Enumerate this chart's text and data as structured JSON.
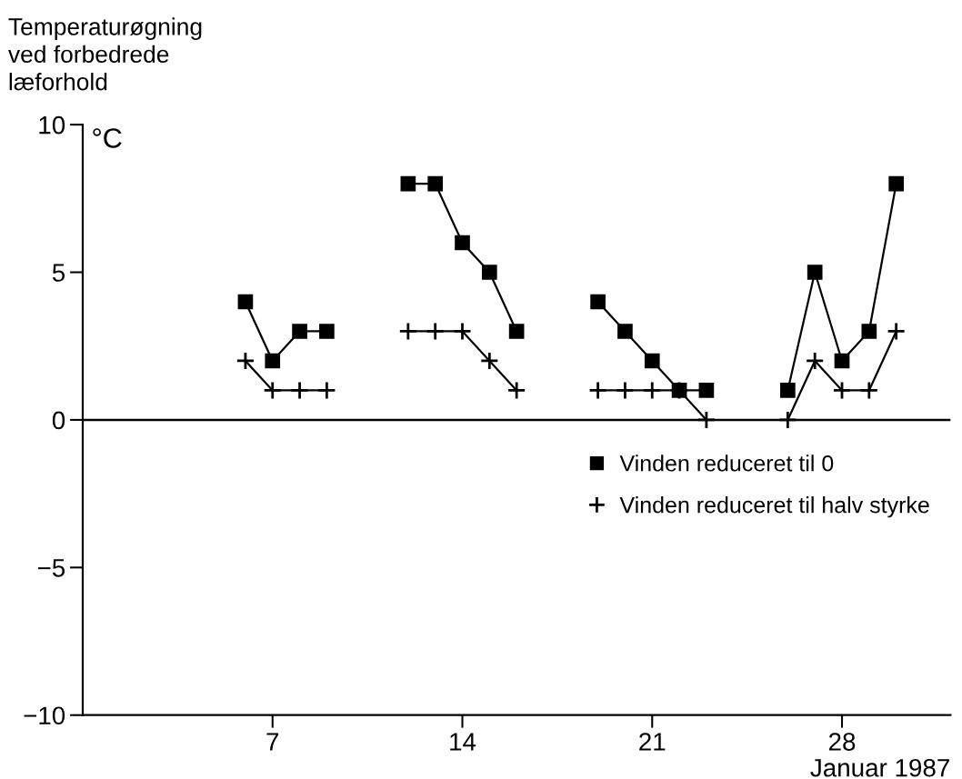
{
  "chart_data": {
    "type": "line",
    "ylabel": "Temperaturøgning\nved forbedrede\nlæforhold",
    "xlabel": "Januar 1987",
    "annotations": [
      "°C"
    ],
    "x": [
      6,
      7,
      8,
      9,
      10,
      11,
      12,
      13,
      14,
      15,
      16,
      17,
      18,
      19,
      20,
      21,
      22,
      23,
      24,
      25,
      26,
      27,
      28,
      29,
      30
    ],
    "series": [
      {
        "name": "Vinden reduceret til 0",
        "color": "#000000",
        "marker": "square",
        "values": [
          4,
          2,
          3,
          3,
          null,
          null,
          8,
          8,
          6,
          5,
          3,
          null,
          null,
          4,
          3,
          2,
          1,
          1,
          null,
          null,
          1,
          5,
          2,
          3,
          8
        ]
      },
      {
        "name": "Vinden reduceret til halv styrke",
        "color": "#000000",
        "marker": "cross",
        "values": [
          2,
          1,
          1,
          1,
          null,
          null,
          3,
          3,
          3,
          2,
          1,
          null,
          null,
          1,
          1,
          1,
          1,
          0,
          null,
          null,
          0,
          2,
          1,
          1,
          3
        ]
      }
    ],
    "xlim": [
      0,
      32
    ],
    "xticks": [
      7,
      14,
      21,
      28
    ],
    "ylim": [
      -10,
      10
    ],
    "yticks": [
      -10,
      -5,
      0,
      5,
      10
    ],
    "ref_lines": [
      {
        "axis": "y",
        "value": 0,
        "color": "#000000"
      }
    ],
    "grid": false,
    "legend": "bottom right",
    "line_style": "solid"
  }
}
